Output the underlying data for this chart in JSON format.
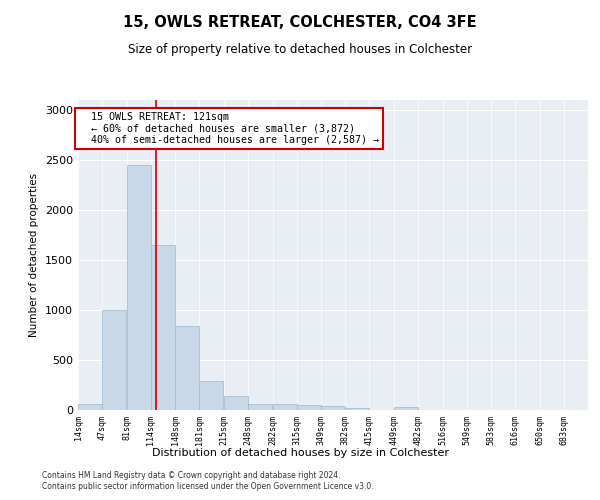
{
  "title": "15, OWLS RETREAT, COLCHESTER, CO4 3FE",
  "subtitle": "Size of property relative to detached houses in Colchester",
  "xlabel": "Distribution of detached houses by size in Colchester",
  "ylabel": "Number of detached properties",
  "bins": [
    14,
    47,
    81,
    114,
    148,
    181,
    215,
    248,
    282,
    315,
    349,
    382,
    415,
    449,
    482,
    516,
    549,
    583,
    616,
    650,
    683
  ],
  "bin_labels": [
    "14sqm",
    "47sqm",
    "81sqm",
    "114sqm",
    "148sqm",
    "181sqm",
    "215sqm",
    "248sqm",
    "282sqm",
    "315sqm",
    "349sqm",
    "382sqm",
    "415sqm",
    "449sqm",
    "482sqm",
    "516sqm",
    "549sqm",
    "583sqm",
    "616sqm",
    "650sqm",
    "683sqm"
  ],
  "values": [
    60,
    1000,
    2450,
    1650,
    840,
    295,
    140,
    60,
    60,
    55,
    45,
    25,
    0,
    35,
    0,
    0,
    0,
    0,
    0,
    0,
    0
  ],
  "bar_color": "#c8d8e8",
  "bar_edge_color": "#a0b8cc",
  "property_line_x": 121,
  "property_line_color": "#cc0000",
  "annotation_line1": "  15 OWLS RETREAT: 121sqm",
  "annotation_line2": "  ← 60% of detached houses are smaller (3,872)",
  "annotation_line3": "  40% of semi-detached houses are larger (2,587) →",
  "annotation_box_color": "#cc0000",
  "ylim": [
    0,
    3100
  ],
  "yticks": [
    0,
    500,
    1000,
    1500,
    2000,
    2500,
    3000
  ],
  "background_color": "#e8eef4",
  "footer_line1": "Contains HM Land Registry data © Crown copyright and database right 2024.",
  "footer_line2": "Contains public sector information licensed under the Open Government Licence v3.0."
}
